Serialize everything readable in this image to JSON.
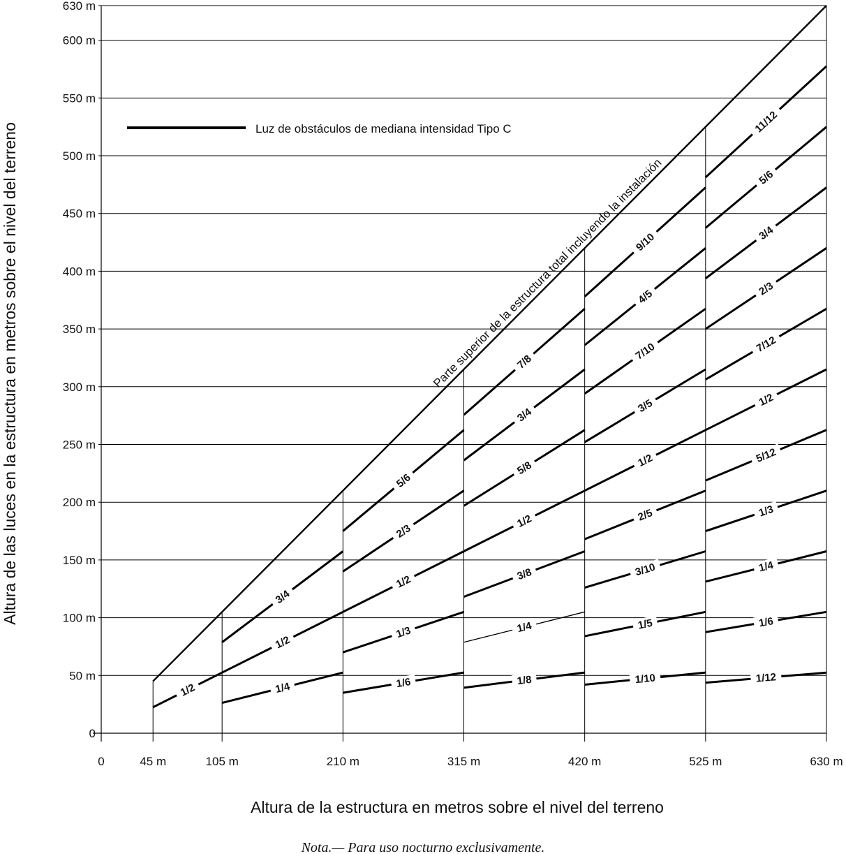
{
  "chart_data": {
    "type": "line",
    "xlabel": "Altura de la estructura en metros sobre el nivel del terreno",
    "ylabel": "Altura de las luces en la estructura en metros sobre el nivel del terreno",
    "xlim": [
      0,
      630
    ],
    "ylim": [
      0,
      630
    ],
    "x_ticks": [
      0,
      45,
      105,
      210,
      315,
      420,
      525,
      630
    ],
    "x_tick_labels": [
      "0",
      "45 m",
      "105 m",
      "210 m",
      "315 m",
      "420 m",
      "525 m",
      "630 m"
    ],
    "y_ticks": [
      0,
      50,
      100,
      150,
      200,
      250,
      300,
      350,
      400,
      450,
      500,
      550,
      600,
      630
    ],
    "y_tick_labels": [
      "0",
      "50 m",
      "100 m",
      "150 m",
      "200 m",
      "250 m",
      "300 m",
      "350 m",
      "400 m",
      "450 m",
      "500 m",
      "550 m",
      "600 m",
      "630 m"
    ],
    "grid": true,
    "legend": {
      "label": "Luz de obstáculos de mediana intensidad Tipo C",
      "placement": "top-left"
    },
    "top_line": {
      "label": "Parte superior de la estructura total incluyendo la instalación",
      "x": [
        45,
        630
      ],
      "y": [
        45,
        630
      ]
    },
    "segments": [
      {
        "label": "1/2",
        "x_start": 45,
        "x_end": 105,
        "fraction": 0.5
      },
      {
        "label": "3/4",
        "x_start": 105,
        "x_end": 210,
        "fraction": 0.75
      },
      {
        "label": "1/2",
        "x_start": 105,
        "x_end": 210,
        "fraction": 0.5
      },
      {
        "label": "1/4",
        "x_start": 105,
        "x_end": 210,
        "fraction": 0.25
      },
      {
        "label": "5/6",
        "x_start": 210,
        "x_end": 315,
        "fraction": 0.8333
      },
      {
        "label": "2/3",
        "x_start": 210,
        "x_end": 315,
        "fraction": 0.6667
      },
      {
        "label": "1/2",
        "x_start": 210,
        "x_end": 315,
        "fraction": 0.5
      },
      {
        "label": "1/3",
        "x_start": 210,
        "x_end": 315,
        "fraction": 0.3333
      },
      {
        "label": "1/6",
        "x_start": 210,
        "x_end": 315,
        "fraction": 0.1667
      },
      {
        "label": "7/8",
        "x_start": 315,
        "x_end": 420,
        "fraction": 0.875
      },
      {
        "label": "3/4",
        "x_start": 315,
        "x_end": 420,
        "fraction": 0.75
      },
      {
        "label": "5/8",
        "x_start": 315,
        "x_end": 420,
        "fraction": 0.625
      },
      {
        "label": "1/2",
        "x_start": 315,
        "x_end": 420,
        "fraction": 0.5
      },
      {
        "label": "3/8",
        "x_start": 315,
        "x_end": 420,
        "fraction": 0.375
      },
      {
        "label": "1/4",
        "x_start": 315,
        "x_end": 420,
        "fraction": 0.25
      },
      {
        "label": "1/8",
        "x_start": 315,
        "x_end": 420,
        "fraction": 0.125
      },
      {
        "label": "9/10",
        "x_start": 420,
        "x_end": 525,
        "fraction": 0.9
      },
      {
        "label": "4/5",
        "x_start": 420,
        "x_end": 525,
        "fraction": 0.8
      },
      {
        "label": "7/10",
        "x_start": 420,
        "x_end": 525,
        "fraction": 0.7
      },
      {
        "label": "3/5",
        "x_start": 420,
        "x_end": 525,
        "fraction": 0.6
      },
      {
        "label": "1/2",
        "x_start": 420,
        "x_end": 525,
        "fraction": 0.5
      },
      {
        "label": "2/5",
        "x_start": 420,
        "x_end": 525,
        "fraction": 0.4
      },
      {
        "label": "3/10",
        "x_start": 420,
        "x_end": 525,
        "fraction": 0.3
      },
      {
        "label": "1/5",
        "x_start": 420,
        "x_end": 525,
        "fraction": 0.2
      },
      {
        "label": "1/10",
        "x_start": 420,
        "x_end": 525,
        "fraction": 0.1
      },
      {
        "label": "11/12",
        "x_start": 525,
        "x_end": 630,
        "fraction": 0.9167
      },
      {
        "label": "5/6",
        "x_start": 525,
        "x_end": 630,
        "fraction": 0.8333
      },
      {
        "label": "3/4",
        "x_start": 525,
        "x_end": 630,
        "fraction": 0.75
      },
      {
        "label": "2/3",
        "x_start": 525,
        "x_end": 630,
        "fraction": 0.6667
      },
      {
        "label": "7/12",
        "x_start": 525,
        "x_end": 630,
        "fraction": 0.5833
      },
      {
        "label": "1/2",
        "x_start": 525,
        "x_end": 630,
        "fraction": 0.5
      },
      {
        "label": "5/12",
        "x_start": 525,
        "x_end": 630,
        "fraction": 0.4167
      },
      {
        "label": "1/3",
        "x_start": 525,
        "x_end": 630,
        "fraction": 0.3333
      },
      {
        "label": "1/4",
        "x_start": 525,
        "x_end": 630,
        "fraction": 0.25
      },
      {
        "label": "1/6",
        "x_start": 525,
        "x_end": 630,
        "fraction": 0.1667
      },
      {
        "label": "1/12",
        "x_start": 525,
        "x_end": 630,
        "fraction": 0.0833
      }
    ],
    "note": "Nota.— Para uso nocturno exclusivamente."
  },
  "colors": {
    "line": "#000000",
    "grid": "#000000",
    "background": "#ffffff"
  }
}
